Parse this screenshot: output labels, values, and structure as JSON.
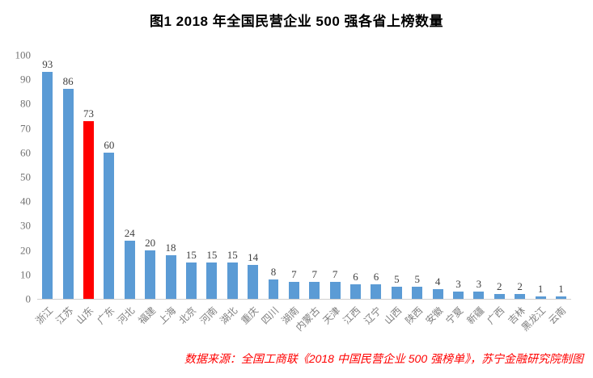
{
  "title": "图1  2018 年全国民营企业 500 强各省上榜数量",
  "source_note": "数据来源：全国工商联《2018 中国民营企业 500 强榜单》，苏宁金融研究院制图",
  "chart_data": {
    "type": "bar",
    "title": "图1 2018年全国民营企业500强各省上榜数量",
    "categories": [
      "浙江",
      "江苏",
      "山东",
      "广东",
      "河北",
      "福建",
      "上海",
      "北京",
      "河南",
      "湖北",
      "重庆",
      "四川",
      "湖南",
      "内蒙古",
      "天津",
      "江西",
      "辽宁",
      "山西",
      "陕西",
      "安徽",
      "宁夏",
      "新疆",
      "广西",
      "吉林",
      "黑龙江",
      "云南"
    ],
    "values": [
      93,
      86,
      73,
      60,
      24,
      20,
      18,
      15,
      15,
      15,
      14,
      8,
      7,
      7,
      7,
      6,
      6,
      5,
      5,
      4,
      3,
      3,
      2,
      2,
      1,
      1
    ],
    "highlight_index": 2,
    "bar_color": "#5b9bd5",
    "highlight_color": "#ff0000",
    "xlabel": "",
    "ylabel": "",
    "ylim": [
      0,
      100
    ],
    "y_ticks": [
      0,
      10,
      20,
      30,
      40,
      50,
      60,
      70,
      80,
      90,
      100
    ],
    "grid": false,
    "legend": false,
    "data_labels": true
  }
}
